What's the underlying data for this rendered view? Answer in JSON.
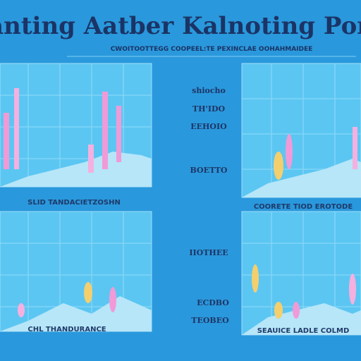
{
  "header": {
    "title": "Wianting Aatber Kalnoting Poretr",
    "subtitle": "CWOITOOTTEGG  COOPEEL:TE  PEXINCLAE  OOHAHMAIDEE"
  },
  "panels": [
    {
      "caption": "SLID TANDACIETZOSHN"
    },
    {
      "caption": "COORETE TIOD EROTODE"
    },
    {
      "caption": "CHL THANDURANCE"
    },
    {
      "caption": "SEAUICE LADLE COLMD"
    }
  ],
  "side_labels": [
    "shiocho",
    "TH'IDO",
    "EEHOIO",
    "BOETTO",
    "IIOTHEE",
    "ECDBO",
    "TEOBEO"
  ]
}
